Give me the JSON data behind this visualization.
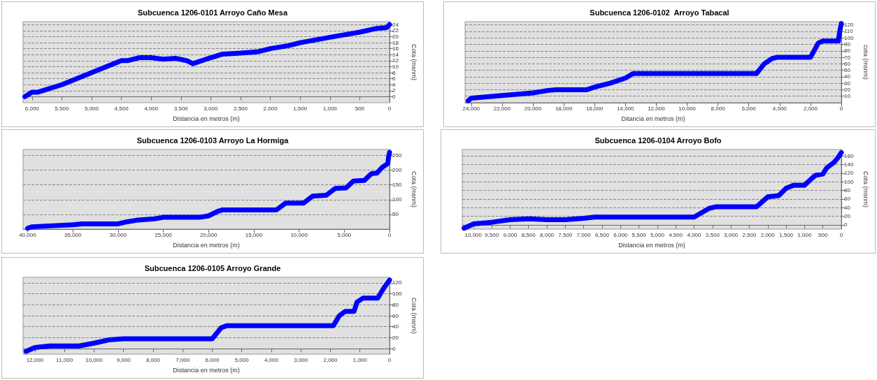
{
  "chart_data": [
    {
      "type": "line",
      "title": "Subcuenca 1206-0101 Arroyo Caño Mesa",
      "xlabel": "Distancia en metros (m)",
      "ylabel": "Cota (msnm)",
      "grid": "y",
      "marker": "none",
      "xlim": [
        6150,
        0
      ],
      "ylim": [
        -2,
        25
      ],
      "xticks": [
        {
          "value": 6000,
          "label": "6,000"
        },
        {
          "value": 5500,
          "label": "5,500"
        },
        {
          "value": 5000,
          "label": "5,000"
        },
        {
          "value": 4500,
          "label": "4,500"
        },
        {
          "value": 4000,
          "label": "4,000"
        },
        {
          "value": 3500,
          "label": "3,500"
        },
        {
          "value": 3000,
          "label": "3,000"
        },
        {
          "value": 2500,
          "label": "2,500"
        },
        {
          "value": 2000,
          "label": "2,000"
        },
        {
          "value": 1500,
          "label": "1,500"
        },
        {
          "value": 1000,
          "label": "1,000"
        },
        {
          "value": 500,
          "label": "500"
        },
        {
          "value": 0,
          "label": "0"
        }
      ],
      "yticks": [
        0,
        2,
        4,
        6,
        8,
        10,
        12,
        14,
        16,
        18,
        20,
        22,
        24
      ],
      "x": [
        6120,
        6000,
        5900,
        5500,
        5000,
        4500,
        4400,
        4200,
        4000,
        3800,
        3600,
        3400,
        3300,
        3000,
        2800,
        2500,
        2200,
        2000,
        1700,
        1500,
        1000,
        500,
        200,
        50,
        0
      ],
      "series": [
        {
          "color": "#0000ff",
          "values": [
            0,
            1.5,
            1.5,
            4,
            8,
            12,
            12,
            13,
            13,
            12.5,
            12.8,
            12,
            11,
            13,
            14.2,
            14.5,
            15,
            16,
            17,
            18,
            19.8,
            21.5,
            22.8,
            23,
            24
          ]
        }
      ]
    },
    {
      "type": "line",
      "title": "Subcuenca 1206-0102  Arroyo Tabacal",
      "xlabel": "Ditancia en metros (m)",
      "ylabel": "cota (msnm)",
      "grid": "y",
      "marker": "none",
      "xlim": [
        24400,
        0
      ],
      "ylim": [
        0,
        125
      ],
      "xticks": [
        {
          "value": 24000,
          "label": "24,000"
        },
        {
          "value": 22000,
          "label": "22,000"
        },
        {
          "value": 20000,
          "label": "20,000"
        },
        {
          "value": 18000,
          "label": "18,000"
        },
        {
          "value": 16000,
          "label": "16,000"
        },
        {
          "value": 14000,
          "label": "14,000"
        },
        {
          "value": 12000,
          "label": "12,000"
        },
        {
          "value": 10000,
          "label": "10,000"
        },
        {
          "value": 8000,
          "label": "8,000"
        },
        {
          "value": 6000,
          "label": "6,000"
        },
        {
          "value": 4000,
          "label": "4,000"
        },
        {
          "value": 2000,
          "label": "2,000"
        },
        {
          "value": 0,
          "label": "0"
        }
      ],
      "yticks": [
        10,
        20,
        30,
        40,
        50,
        60,
        70,
        80,
        90,
        100,
        110,
        120
      ],
      "x": [
        24200,
        24000,
        22000,
        20000,
        19000,
        18500,
        16500,
        16000,
        15000,
        14000,
        13500,
        6000,
        5500,
        5000,
        4500,
        4200,
        2000,
        1700,
        1500,
        1200,
        200,
        100,
        0
      ],
      "series": [
        {
          "color": "#0000ff",
          "values": [
            3,
            7,
            11,
            15,
            19,
            20,
            20,
            24,
            30,
            38,
            45,
            45,
            45,
            60,
            68,
            70,
            70,
            83,
            92,
            95,
            95,
            110,
            122
          ]
        }
      ]
    },
    {
      "type": "line",
      "title": "Subcuenca 1206-0103 Arroyo La Hormiga",
      "xlabel": "Distancia en metros (m)",
      "ylabel": "Cota (msnm)",
      "grid": "y",
      "marker": "none",
      "xlim": [
        40500,
        0
      ],
      "ylim": [
        0,
        270
      ],
      "xticks": [
        {
          "value": 40000,
          "label": "40,000"
        },
        {
          "value": 35000,
          "label": "35,000"
        },
        {
          "value": 30000,
          "label": "30,000"
        },
        {
          "value": 25000,
          "label": "25,000"
        },
        {
          "value": 20000,
          "label": "20,000"
        },
        {
          "value": 15000,
          "label": "15,000"
        },
        {
          "value": 10000,
          "label": "10,000"
        },
        {
          "value": 5000,
          "label": "5,000"
        },
        {
          "value": 0,
          "label": "0"
        }
      ],
      "yticks": [
        50,
        100,
        150,
        200,
        250
      ],
      "x": [
        40000,
        39500,
        35000,
        34000,
        30000,
        29000,
        28000,
        26000,
        25000,
        21000,
        20000,
        19000,
        18500,
        12500,
        11500,
        9500,
        8500,
        7000,
        6000,
        4800,
        4000,
        2800,
        2000,
        1400,
        800,
        200,
        100,
        0
      ],
      "series": [
        {
          "color": "#0000ff",
          "values": [
            3,
            8,
            15,
            18,
            18,
            25,
            30,
            35,
            40,
            40,
            45,
            60,
            65,
            65,
            88,
            88,
            112,
            115,
            138,
            140,
            163,
            165,
            188,
            190,
            210,
            222,
            245,
            260
          ]
        }
      ]
    },
    {
      "type": "line",
      "title": "Subcuenca 1206-0104 Arroyo Bofo",
      "xlabel": "Distancia en metros (m)",
      "ylabel": "Cota (msnm)",
      "grid": "y",
      "marker": "none",
      "xlim": [
        10300,
        0
      ],
      "ylim": [
        -10,
        175
      ],
      "xticks": [
        {
          "value": 10000,
          "label": "10,000"
        },
        {
          "value": 9500,
          "label": "9,500"
        },
        {
          "value": 9000,
          "label": "9,000"
        },
        {
          "value": 8500,
          "label": "8,500"
        },
        {
          "value": 8000,
          "label": "8,000"
        },
        {
          "value": 7500,
          "label": "7,500"
        },
        {
          "value": 7000,
          "label": "7,000"
        },
        {
          "value": 6500,
          "label": "6,500"
        },
        {
          "value": 6000,
          "label": "6,000"
        },
        {
          "value": 5500,
          "label": "5,500"
        },
        {
          "value": 5000,
          "label": "5,000"
        },
        {
          "value": 4500,
          "label": "4,500"
        },
        {
          "value": 4000,
          "label": "4,000"
        },
        {
          "value": 3500,
          "label": "3,500"
        },
        {
          "value": 3000,
          "label": "3,000"
        },
        {
          "value": 2500,
          "label": "2,500"
        },
        {
          "value": 2000,
          "label": "2,000"
        },
        {
          "value": 1500,
          "label": "1,500"
        },
        {
          "value": 1000,
          "label": "1,000"
        },
        {
          "value": 500,
          "label": "500"
        },
        {
          "value": 0,
          "label": "0"
        }
      ],
      "yticks": [
        0,
        20,
        40,
        60,
        80,
        100,
        120,
        140,
        160
      ],
      "x": [
        10250,
        10000,
        9500,
        9000,
        8500,
        8000,
        7500,
        7000,
        6700,
        4000,
        3600,
        3400,
        2300,
        2000,
        1700,
        1500,
        1300,
        1000,
        800,
        700,
        500,
        400,
        200,
        100,
        0
      ],
      "series": [
        {
          "color": "#0000ff",
          "values": [
            -8,
            2,
            6,
            12,
            14,
            12,
            12,
            15,
            18,
            18,
            38,
            42,
            42,
            65,
            68,
            85,
            92,
            92,
            108,
            115,
            118,
            132,
            145,
            155,
            168
          ]
        }
      ]
    },
    {
      "type": "line",
      "title": "Subcuenca 1206-0105 Arroyo Grande",
      "xlabel": "Distancia en metros (m)",
      "ylabel": "Cota (msnm)",
      "grid": "y",
      "marker": "none",
      "xlim": [
        12400,
        0
      ],
      "ylim": [
        -10,
        130
      ],
      "xticks": [
        {
          "value": 12000,
          "label": "12,000"
        },
        {
          "value": 11000,
          "label": "11,000"
        },
        {
          "value": 10000,
          "label": "10,000"
        },
        {
          "value": 9000,
          "label": "9,000"
        },
        {
          "value": 8000,
          "label": "8,000"
        },
        {
          "value": 7000,
          "label": "7,000"
        },
        {
          "value": 6000,
          "label": "6,000"
        },
        {
          "value": 5000,
          "label": "5,000"
        },
        {
          "value": 4000,
          "label": "4,000"
        },
        {
          "value": 3000,
          "label": "3,000"
        },
        {
          "value": 2000,
          "label": "2,000"
        },
        {
          "value": 1000,
          "label": "1,000"
        },
        {
          "value": 0,
          "label": "0"
        }
      ],
      "yticks": [
        0,
        20,
        40,
        60,
        80,
        100,
        120
      ],
      "x": [
        12300,
        12000,
        11500,
        10500,
        10000,
        9500,
        9000,
        6000,
        5700,
        5500,
        1900,
        1700,
        1500,
        1200,
        1100,
        900,
        400,
        200,
        0
      ],
      "series": [
        {
          "color": "#0000ff",
          "values": [
            -5,
            2,
            5,
            5,
            10,
            16,
            18,
            18,
            38,
            42,
            42,
            60,
            68,
            68,
            85,
            92,
            92,
            110,
            125
          ]
        }
      ]
    }
  ]
}
